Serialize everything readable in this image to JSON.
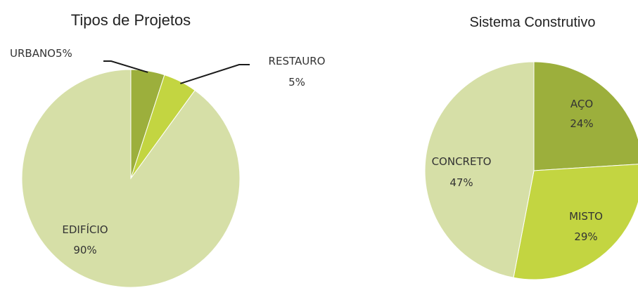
{
  "chart_data": [
    {
      "type": "pie",
      "title": "Tipos de Projetos",
      "slices": [
        {
          "label": "URBANO",
          "value_text": "5%",
          "value": 5,
          "color": "#9caf3c"
        },
        {
          "label": "RESTAURO",
          "value_text": "5%",
          "value": 5,
          "color": "#c3d541"
        },
        {
          "label": "EDIFÍCIO",
          "value_text": "90%",
          "value": 90,
          "color": "#d6dfa7"
        }
      ]
    },
    {
      "type": "pie",
      "title": "Sistema Construtivo",
      "slices": [
        {
          "label": "AÇO",
          "value_text": "24%",
          "value": 24,
          "color": "#9caf3c"
        },
        {
          "label": "MISTO",
          "value_text": "29%",
          "value": 29,
          "color": "#c3d541"
        },
        {
          "label": "CONCRETO",
          "value_text": "47%",
          "value": 47,
          "color": "#d6dfa7"
        }
      ]
    }
  ]
}
